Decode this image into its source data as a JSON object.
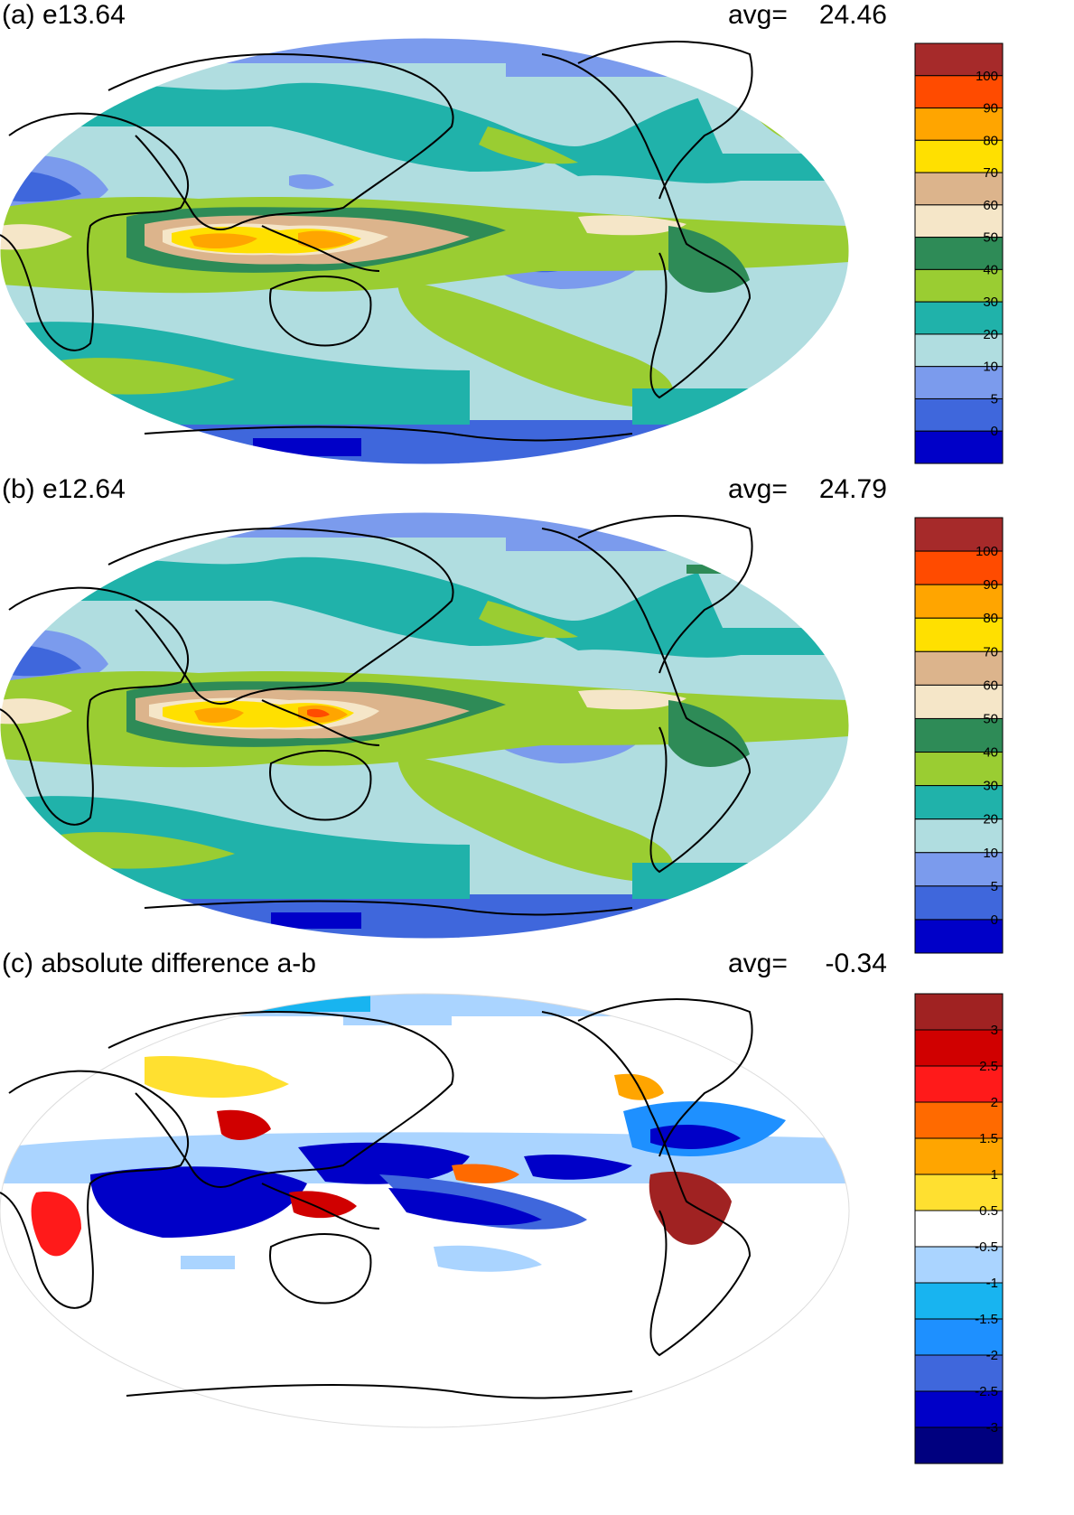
{
  "panels": [
    {
      "id": "a",
      "title": "(a) e13.64",
      "avg_label": "avg=",
      "avg_value": "24.46",
      "colorbar": {
        "labels": [
          "100",
          "90",
          "80",
          "70",
          "60",
          "50",
          "40",
          "30",
          "20",
          "10",
          "5",
          "0"
        ],
        "colors": [
          "#a62a2a",
          "#ff4b00",
          "#ffa500",
          "#ffe000",
          "#dcb48c",
          "#f5e6c8",
          "#2e8b57",
          "#9acd32",
          "#20b2aa",
          "#b0dde0",
          "#7b9bed",
          "#3f67dc",
          "#0000c8"
        ]
      }
    },
    {
      "id": "b",
      "title": "(b) e12.64",
      "avg_label": "avg=",
      "avg_value": "24.79",
      "colorbar": {
        "labels": [
          "100",
          "90",
          "80",
          "70",
          "60",
          "50",
          "40",
          "30",
          "20",
          "10",
          "5",
          "0"
        ],
        "colors": [
          "#a62a2a",
          "#ff4b00",
          "#ffa500",
          "#ffe000",
          "#dcb48c",
          "#f5e6c8",
          "#2e8b57",
          "#9acd32",
          "#20b2aa",
          "#b0dde0",
          "#7b9bed",
          "#3f67dc",
          "#0000c8"
        ]
      }
    },
    {
      "id": "c",
      "title": "(c) absolute difference a-b",
      "avg_label": "avg=",
      "avg_value": "-0.34",
      "colorbar": {
        "labels": [
          "3",
          "2.5",
          "2",
          "1.5",
          "1",
          "0.5",
          "-0.5",
          "-1",
          "-1.5",
          "-2",
          "-2.5",
          "-3"
        ],
        "colors": [
          "#a02222",
          "#d00000",
          "#ff1a1a",
          "#ff6a00",
          "#ffa500",
          "#ffe030",
          "#ffffff",
          "#aad4ff",
          "#18b4f0",
          "#1e90ff",
          "#3f67dc",
          "#0000c8",
          "#00007f"
        ]
      }
    }
  ]
}
